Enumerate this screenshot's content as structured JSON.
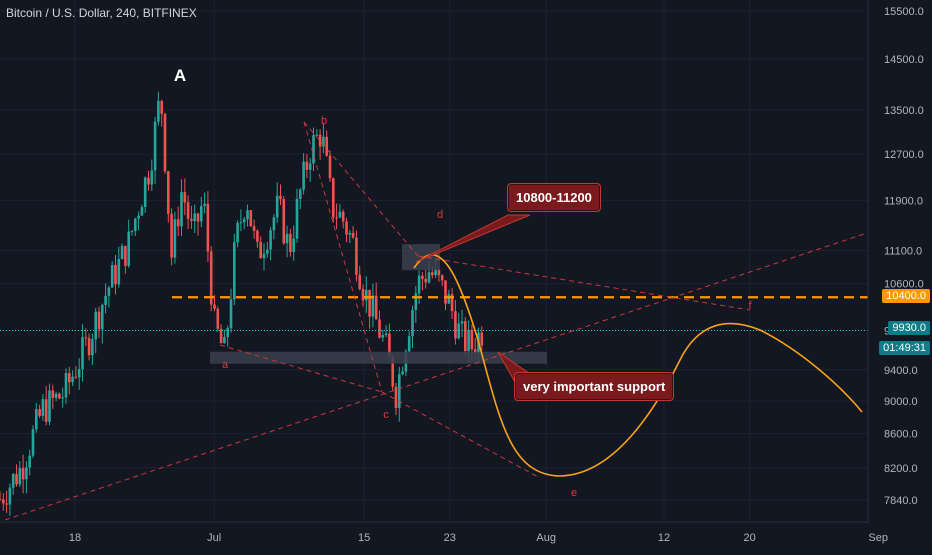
{
  "header": {
    "title": "Bitcoin / U.S. Dollar, 240, BITFINEX"
  },
  "colors": {
    "background": "#131722",
    "up": "#26a69a",
    "down": "#ef5350",
    "projection": "#f7a21b",
    "resistance_line": "#ff9800",
    "annotation": "#e0393e",
    "support_box": "#3a3f4d",
    "current_line": "#26c6da"
  },
  "annotations": {
    "wave_A": "A",
    "label_a": "a",
    "label_b": "b",
    "label_c": "c",
    "label_d": "d",
    "label_e": "e",
    "label_f": "f",
    "callout_resistance": "10800-11200",
    "callout_support": "very important support"
  },
  "price_tags": {
    "level": "10400.0",
    "last": "9930.0",
    "countdown": "01:49:31"
  },
  "chart_data": {
    "type": "candlestick",
    "title": "Bitcoin / U.S. Dollar, 240, BITFINEX",
    "y_axis": {
      "scale": "log",
      "range": [
        7650,
        15700
      ],
      "ticks": [
        "15500.0",
        "14500.0",
        "13500.0",
        "12700.0",
        "11900.0",
        "11100.0",
        "10600.0",
        "9930.0",
        "9400.0",
        "9000.0",
        "8600.0",
        "8200.0",
        "7840.0"
      ]
    },
    "x_axis": {
      "ticks": [
        "18",
        "Jul",
        "15",
        "23",
        "Aug",
        "12",
        "20",
        "Sep"
      ]
    },
    "price_path": [
      [
        "Jun 11",
        7850
      ],
      [
        "Jun 13",
        8200
      ],
      [
        "Jun 15",
        8900
      ],
      [
        "Jun 17",
        9100
      ],
      [
        "Jun 19",
        9700
      ],
      [
        "Jun 21",
        10500
      ],
      [
        "Jun 23",
        11200
      ],
      [
        "Jun 25",
        12500
      ],
      [
        "Jun 26",
        13800
      ],
      [
        "Jun 27",
        11000
      ],
      [
        "Jun 28",
        12100
      ],
      [
        "Jun 29",
        11300
      ],
      [
        "Jun 30",
        11900
      ],
      [
        "Jul 1",
        10000
      ],
      [
        "Jul 2",
        9600
      ],
      [
        "Jul 3",
        11200
      ],
      [
        "Jul 4",
        12000
      ],
      [
        "Jul 5",
        11000
      ],
      [
        "Jul 7",
        11800
      ],
      [
        "Jul 8",
        11100
      ],
      [
        "Jul 9",
        12000
      ],
      [
        "Jul 10",
        12800
      ],
      [
        "Jul 11",
        13100
      ],
      [
        "Jul 12",
        11800
      ],
      [
        "Jul 13",
        11600
      ],
      [
        "Jul 14",
        11200
      ],
      [
        "Jul 15",
        10500
      ],
      [
        "Jul 16",
        10100
      ],
      [
        "Jul 17",
        9700
      ],
      [
        "Jul 18",
        9100
      ],
      [
        "Jul 19",
        9900
      ],
      [
        "Jul 20",
        10600
      ],
      [
        "Jul 21",
        10800
      ],
      [
        "Jul 22",
        10600
      ],
      [
        "Jul 23",
        10300
      ],
      [
        "Jul 24",
        9850
      ],
      [
        "Jul 25",
        9700
      ],
      [
        "Jul 26",
        9930
      ]
    ],
    "horizontal_levels": [
      {
        "price": 10400,
        "style": "dashed",
        "label": "10400.0"
      },
      {
        "price": 9930,
        "style": "dotted",
        "label": "9930.0"
      }
    ],
    "projection": "decline to ~8100 early Aug, rebound to ~9930 mid-Aug, then decline"
  }
}
